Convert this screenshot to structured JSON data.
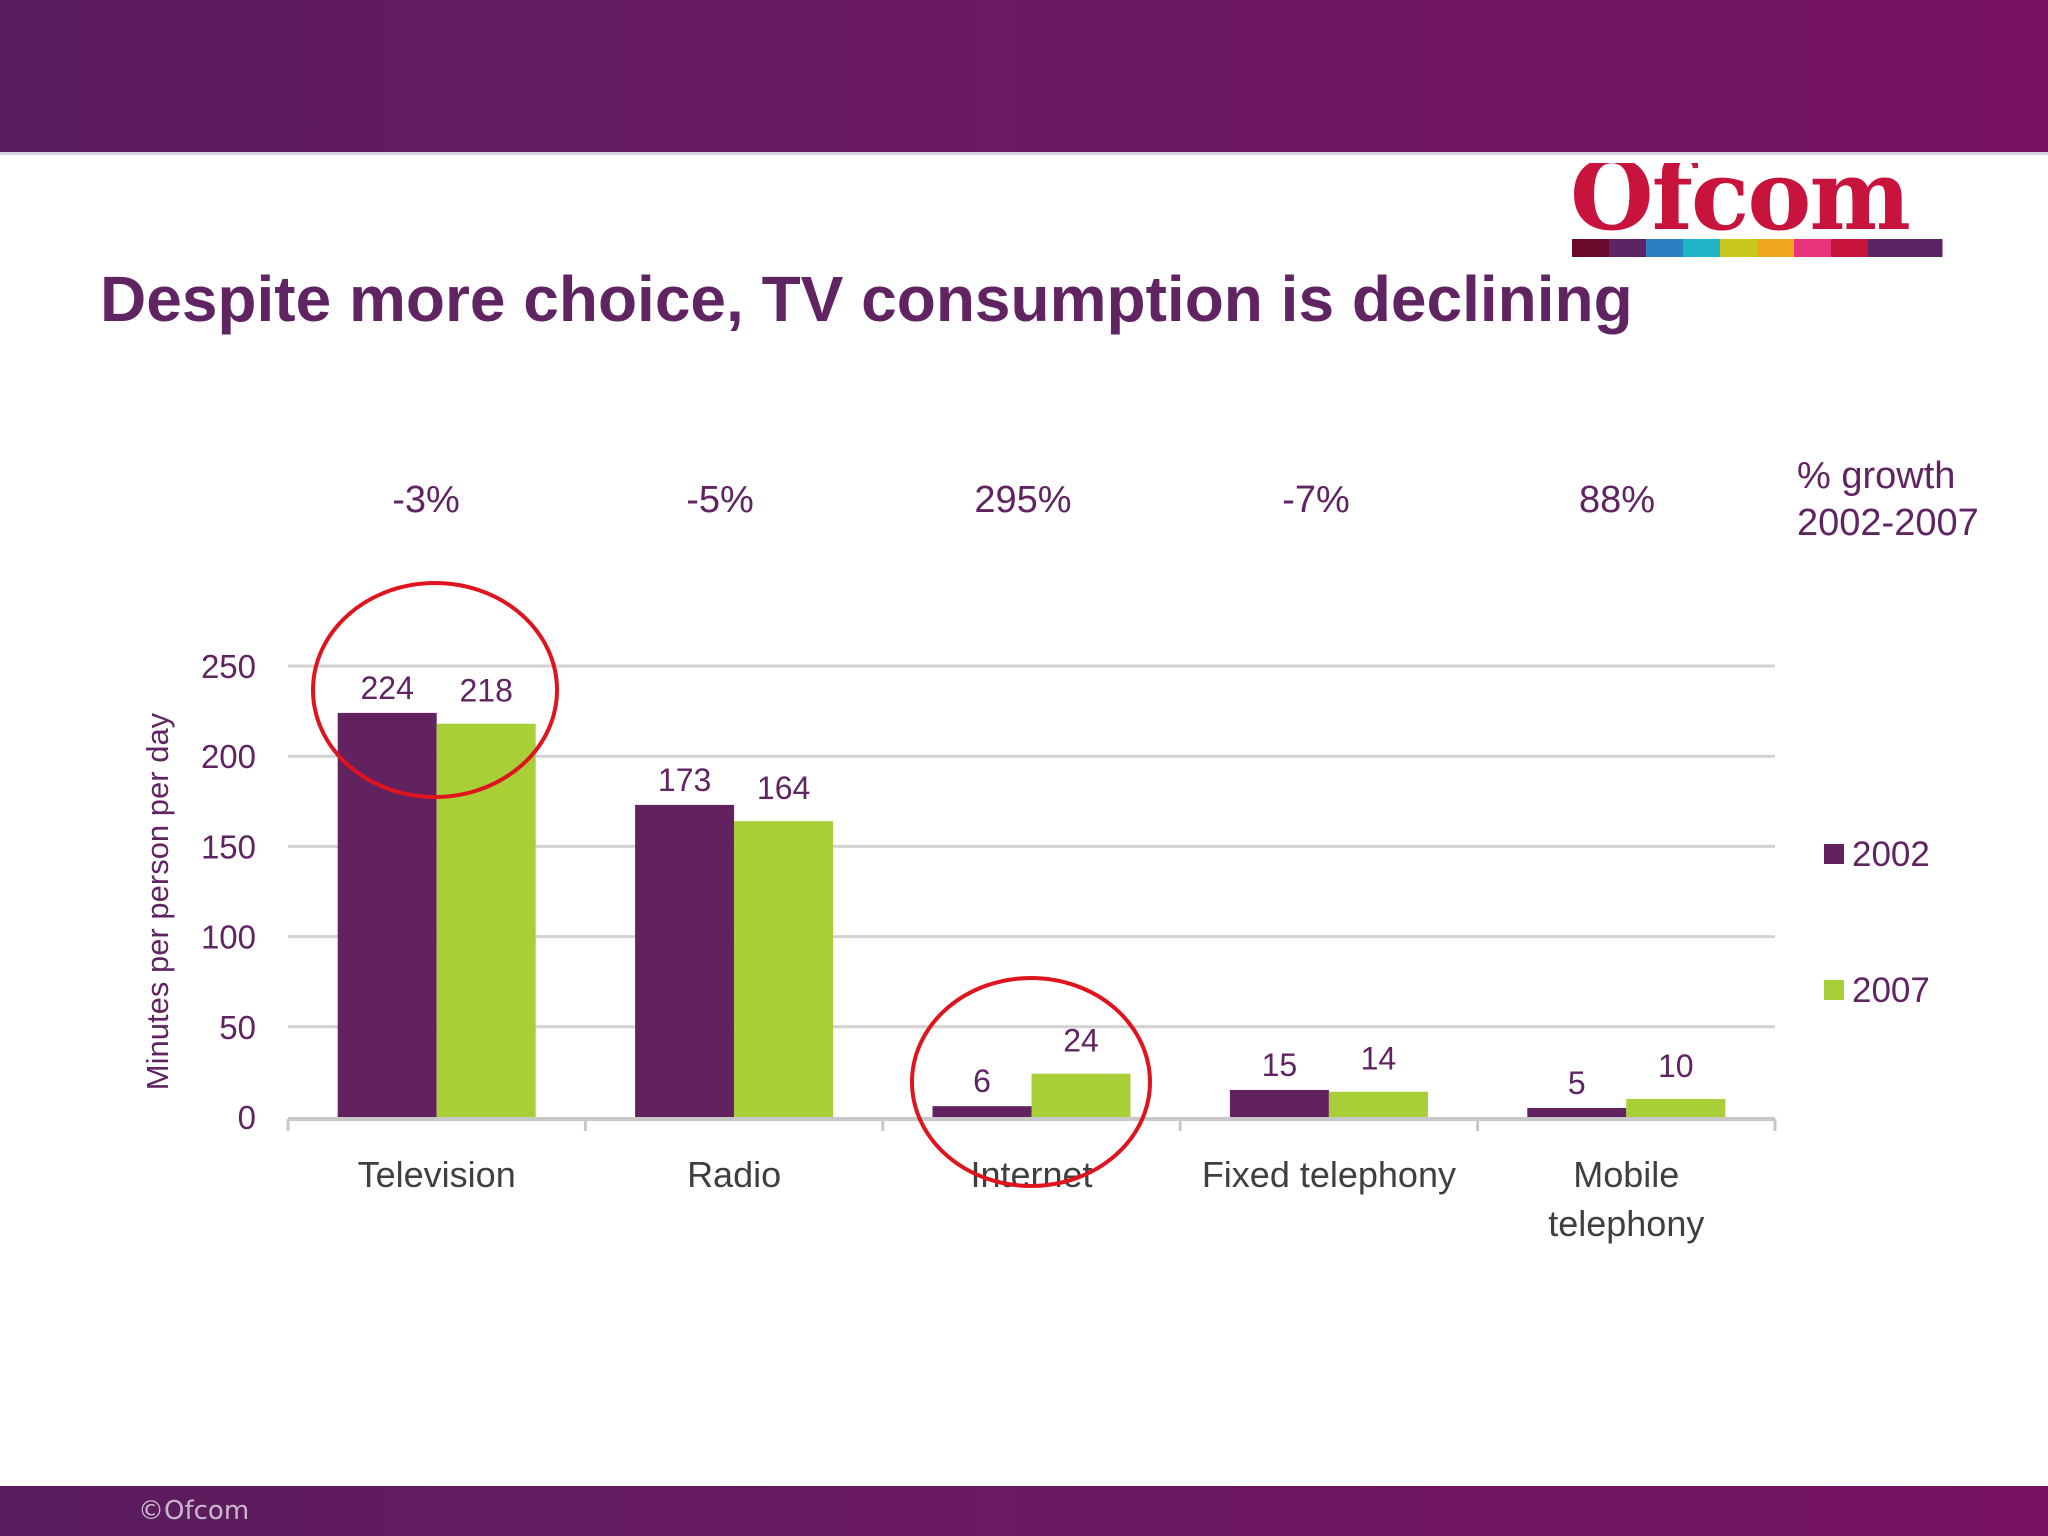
{
  "slide": {
    "title": "Despite more choice, TV consumption is declining",
    "logo_text": "Ofcom",
    "footer": "©Ofcom"
  },
  "colors": {
    "band": "#6a1a63",
    "series_2002": "#62215f",
    "series_2007": "#a8cf38",
    "title": "#5f2461",
    "circle": "#e0141e",
    "logo_stripe": [
      "#6a0a2c",
      "#5c2464",
      "#2c7fc0",
      "#1fb3c8",
      "#c8c81e",
      "#f2a81e",
      "#e8327c",
      "#c8143c",
      "#5c2464",
      "#5c2464"
    ]
  },
  "chart_data": {
    "type": "bar",
    "categories": [
      "Television",
      "Radio",
      "Internet",
      "Fixed telephony",
      "Mobile telephony"
    ],
    "category_lines": [
      [
        "Television"
      ],
      [
        "Radio"
      ],
      [
        "Internet"
      ],
      [
        "Fixed telephony"
      ],
      [
        "Mobile",
        "telephony"
      ]
    ],
    "series": [
      {
        "name": "2002",
        "values": [
          224,
          173,
          6,
          15,
          5
        ]
      },
      {
        "name": "2007",
        "values": [
          218,
          164,
          24,
          14,
          10
        ]
      }
    ],
    "ylabel": "Minutes per person per day",
    "ylim": [
      0,
      250
    ],
    "yticks": [
      0,
      50,
      100,
      150,
      200,
      250
    ],
    "growth_label": [
      "% growth",
      "2002-2007"
    ],
    "growth": [
      "-3%",
      "-5%",
      "295%",
      "-7%",
      "88%"
    ],
    "highlighted_categories": [
      "Television",
      "Internet"
    ],
    "legend": "right",
    "grid": true
  }
}
